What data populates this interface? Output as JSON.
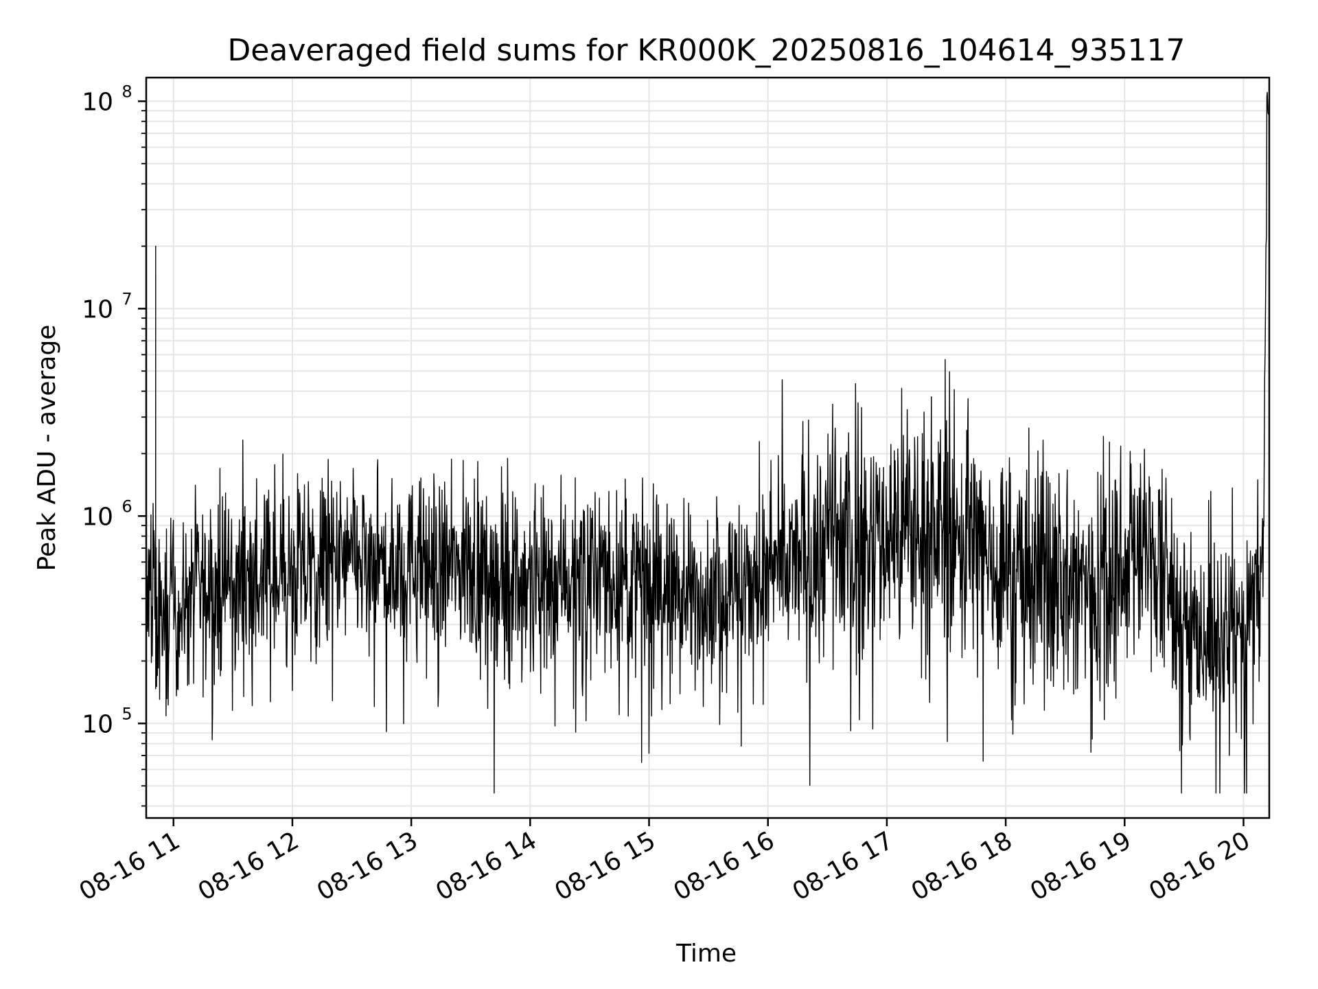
{
  "chart_data": {
    "type": "line",
    "title": "Deaveraged field sums for KR000K_20250816_104614_935117",
    "xlabel": "Time",
    "ylabel": "Peak ADU - average",
    "x_axis": {
      "kind": "time",
      "start": "2025-08-16T10:46:14",
      "end": "2025-08-16T20:13:00",
      "ticks": [
        {
          "t": "2025-08-16T11:00",
          "label": "08-16 11"
        },
        {
          "t": "2025-08-16T12:00",
          "label": "08-16 12"
        },
        {
          "t": "2025-08-16T13:00",
          "label": "08-16 13"
        },
        {
          "t": "2025-08-16T14:00",
          "label": "08-16 14"
        },
        {
          "t": "2025-08-16T15:00",
          "label": "08-16 15"
        },
        {
          "t": "2025-08-16T16:00",
          "label": "08-16 16"
        },
        {
          "t": "2025-08-16T17:00",
          "label": "08-16 17"
        },
        {
          "t": "2025-08-16T18:00",
          "label": "08-16 18"
        },
        {
          "t": "2025-08-16T19:00",
          "label": "08-16 19"
        },
        {
          "t": "2025-08-16T20:00",
          "label": "08-16 20"
        }
      ]
    },
    "y_axis": {
      "scale": "log",
      "ylim": [
        35000,
        130000000
      ],
      "ticks": [
        {
          "value": 100000,
          "base": "10",
          "exp": "5"
        },
        {
          "value": 1000000,
          "base": "10",
          "exp": "6"
        },
        {
          "value": 10000000,
          "base": "10",
          "exp": "7"
        },
        {
          "value": 100000000,
          "base": "10",
          "exp": "8"
        }
      ]
    },
    "grid": "major and minor",
    "line_color": "#000000",
    "series": [
      {
        "x": [
          "2025-08-16T10:46",
          "2025-08-16T10:50",
          "2025-08-16T10:51",
          "2025-08-16T10:52",
          "2025-08-16T10:55",
          "2025-08-16T11:00",
          "2025-08-16T11:15",
          "2025-08-16T11:30",
          "2025-08-16T11:40",
          "2025-08-16T11:45",
          "2025-08-16T12:00",
          "2025-08-16T12:15",
          "2025-08-16T12:30",
          "2025-08-16T12:45",
          "2025-08-16T13:00",
          "2025-08-16T13:15",
          "2025-08-16T13:30",
          "2025-08-16T13:45",
          "2025-08-16T14:00",
          "2025-08-16T14:15",
          "2025-08-16T14:30",
          "2025-08-16T14:45",
          "2025-08-16T15:00",
          "2025-08-16T15:15",
          "2025-08-16T15:30",
          "2025-08-16T15:45",
          "2025-08-16T16:00",
          "2025-08-16T16:15",
          "2025-08-16T16:30",
          "2025-08-16T16:45",
          "2025-08-16T17:00",
          "2025-08-16T17:15",
          "2025-08-16T17:30",
          "2025-08-16T17:45",
          "2025-08-16T18:00",
          "2025-08-16T18:15",
          "2025-08-16T18:30",
          "2025-08-16T18:45",
          "2025-08-16T19:00",
          "2025-08-16T19:15",
          "2025-08-16T19:30",
          "2025-08-16T19:45",
          "2025-08-16T20:00",
          "2025-08-16T20:10",
          "2025-08-16T20:12",
          "2025-08-16T20:13"
        ],
        "y": [
          350000,
          400000,
          20000000,
          300000,
          320000,
          350000,
          430000,
          480000,
          460000,
          500000,
          520000,
          560000,
          600000,
          540000,
          580000,
          560000,
          580000,
          520000,
          500000,
          540000,
          520000,
          500000,
          460000,
          420000,
          430000,
          460000,
          500000,
          620000,
          780000,
          700000,
          820000,
          900000,
          850000,
          720000,
          560000,
          520000,
          460000,
          470000,
          700000,
          620000,
          300000,
          250000,
          270000,
          550000,
          88000000,
          85000000
        ],
        "noise": "dense high-frequency fluctuation, mostly between 1e5 and 2e6"
      }
    ]
  }
}
